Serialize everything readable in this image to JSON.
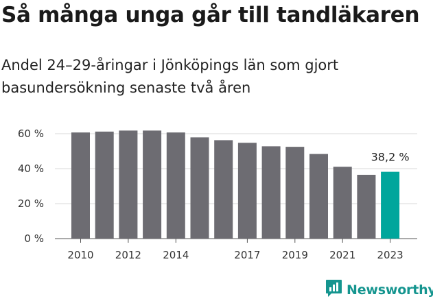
{
  "title": "Så många unga går till tandläkaren",
  "subtitle": "Andel 24–29-åringar i Jönköpings län som gjort basundersökning senaste två åren",
  "brand": {
    "name": "Newsworthy",
    "icon": "newsworthy-chart-icon",
    "color": "#15958f"
  },
  "colors": {
    "bar": "#6d6c72",
    "highlight": "#00a69c",
    "grid": "#d9d9d9"
  },
  "chart_data": {
    "type": "bar",
    "title": "Så många unga går till tandläkaren",
    "xlabel": "",
    "ylabel": "",
    "categories": [
      "2010",
      "2011",
      "2012",
      "2013",
      "2014",
      "2015",
      "2016",
      "2017",
      "2018",
      "2019",
      "2020",
      "2021",
      "2022",
      "2023"
    ],
    "x_tick_labels": [
      "2010",
      "2012",
      "2014",
      "2017",
      "2019",
      "2021",
      "2023"
    ],
    "values": [
      60.7,
      61.2,
      61.8,
      61.8,
      60.7,
      57.9,
      56.3,
      54.8,
      52.8,
      52.5,
      48.4,
      41.1,
      36.5,
      38.2
    ],
    "highlight_index": 13,
    "highlight_label": "38,2 %",
    "y_ticks": [
      "0 %",
      "20 %",
      "40 %",
      "60 %"
    ],
    "y_tick_values": [
      0,
      20,
      40,
      60
    ],
    "ylim": [
      0,
      60
    ],
    "grid": true
  }
}
